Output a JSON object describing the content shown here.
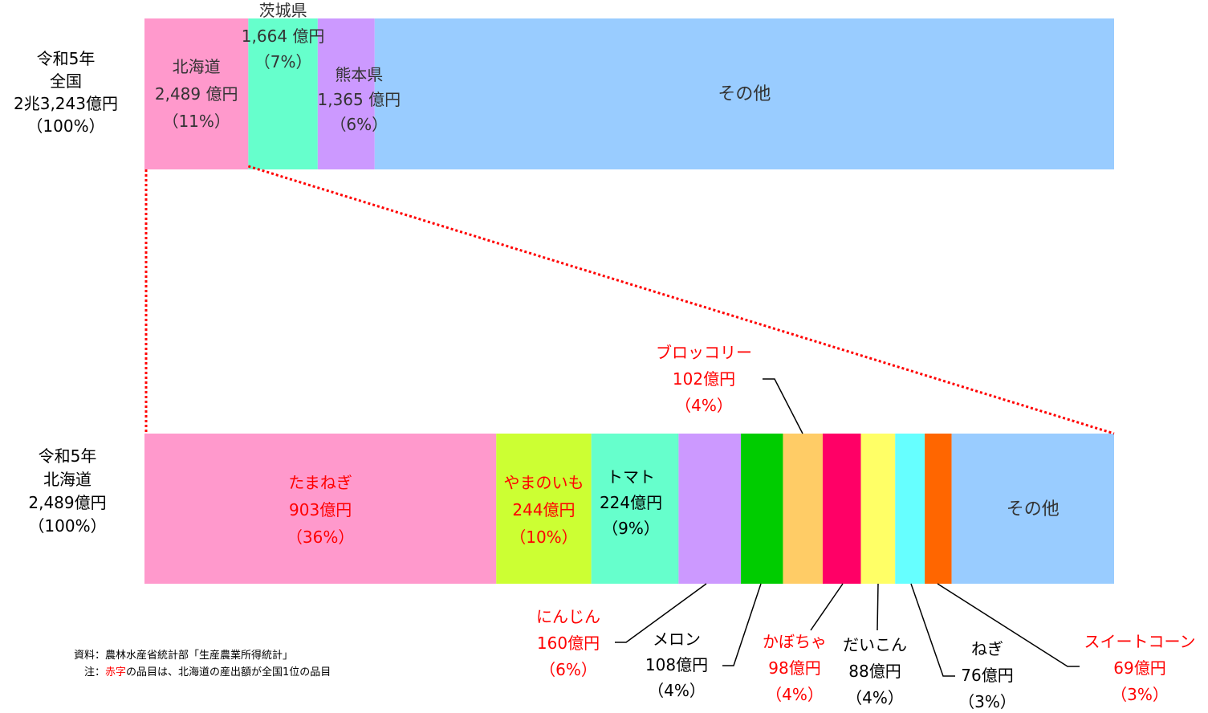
{
  "chart_data": [
    {
      "type": "bar",
      "orientation": "horizontal-stacked",
      "row_label": [
        "令和5年",
        "全国",
        "2兆3,243億円",
        "（100%）"
      ],
      "unit": "億円",
      "total": 23243,
      "series": [
        {
          "name": "北海道",
          "value": 2489,
          "percent_label": "（11%）",
          "value_label": "2,489 億円",
          "color": "#ff99cc",
          "text_color": "#333333"
        },
        {
          "name": "茨城県",
          "value": 1664,
          "percent_label": "（7%）",
          "value_label": "1,664 億円",
          "color": "#66ffcc",
          "text_color": "#333333"
        },
        {
          "name": "熊本県",
          "value": 1365,
          "percent_label": "（6%）",
          "value_label": "1,365 億円",
          "color": "#cc99ff",
          "text_color": "#333333"
        },
        {
          "name": "その他",
          "value": 17725,
          "percent_label": "",
          "value_label": "",
          "color": "#99ccff",
          "text_color": "#333333"
        }
      ]
    },
    {
      "type": "bar",
      "orientation": "horizontal-stacked",
      "row_label": [
        "令和5年",
        "北海道",
        "2,489億円",
        "（100%）"
      ],
      "unit": "億円",
      "total": 2489,
      "series": [
        {
          "name": "たまねぎ",
          "value": 903,
          "value_label": "903億円",
          "percent_label": "（36%）",
          "color": "#ff99cc",
          "text_color": "#ff0000"
        },
        {
          "name": "やまのいも",
          "value": 244,
          "value_label": "244億円",
          "percent_label": "（10%）",
          "color": "#ccff33",
          "text_color": "#ff0000"
        },
        {
          "name": "トマト",
          "value": 224,
          "value_label": "224億円",
          "percent_label": "（9%）",
          "color": "#66ffcc",
          "text_color": "#000000"
        },
        {
          "name": "にんじん",
          "value": 160,
          "value_label": "160億円",
          "percent_label": "（6%）",
          "color": "#cc99ff",
          "text_color": "#ff0000"
        },
        {
          "name": "メロン",
          "value": 108,
          "value_label": "108億円",
          "percent_label": "（4%）",
          "color": "#00cc00",
          "text_color": "#000000"
        },
        {
          "name": "ブロッコリー",
          "value": 102,
          "value_label": "102億円",
          "percent_label": "（4%）",
          "color": "#ffcc66",
          "text_color": "#ff0000"
        },
        {
          "name": "かぼちゃ",
          "value": 98,
          "value_label": "98億円",
          "percent_label": "（4%）",
          "color": "#ff0066",
          "text_color": "#ff0000"
        },
        {
          "name": "だいこん",
          "value": 88,
          "value_label": "88億円",
          "percent_label": "（4%）",
          "color": "#ffff66",
          "text_color": "#000000"
        },
        {
          "name": "ねぎ",
          "value": 76,
          "value_label": "76億円",
          "percent_label": "（3%）",
          "color": "#66ffff",
          "text_color": "#000000"
        },
        {
          "name": "スイートコーン",
          "value": 69,
          "value_label": "69億円",
          "percent_label": "（3%）",
          "color": "#ff6600",
          "text_color": "#ff0000"
        },
        {
          "name": "その他",
          "value": 417,
          "value_label": "",
          "percent_label": "",
          "color": "#99ccff",
          "text_color": "#333333"
        }
      ]
    }
  ],
  "notes": {
    "source": "資料：農林水産省統計部「生産農業所得統計」",
    "note_prefix": "注：",
    "note_red": "赤字",
    "note_rest": "の品目は、北海道の産出額が全国1位の品目"
  },
  "colors": {
    "highlight_text": "#ff0000",
    "connector_line": "#ff0000"
  }
}
